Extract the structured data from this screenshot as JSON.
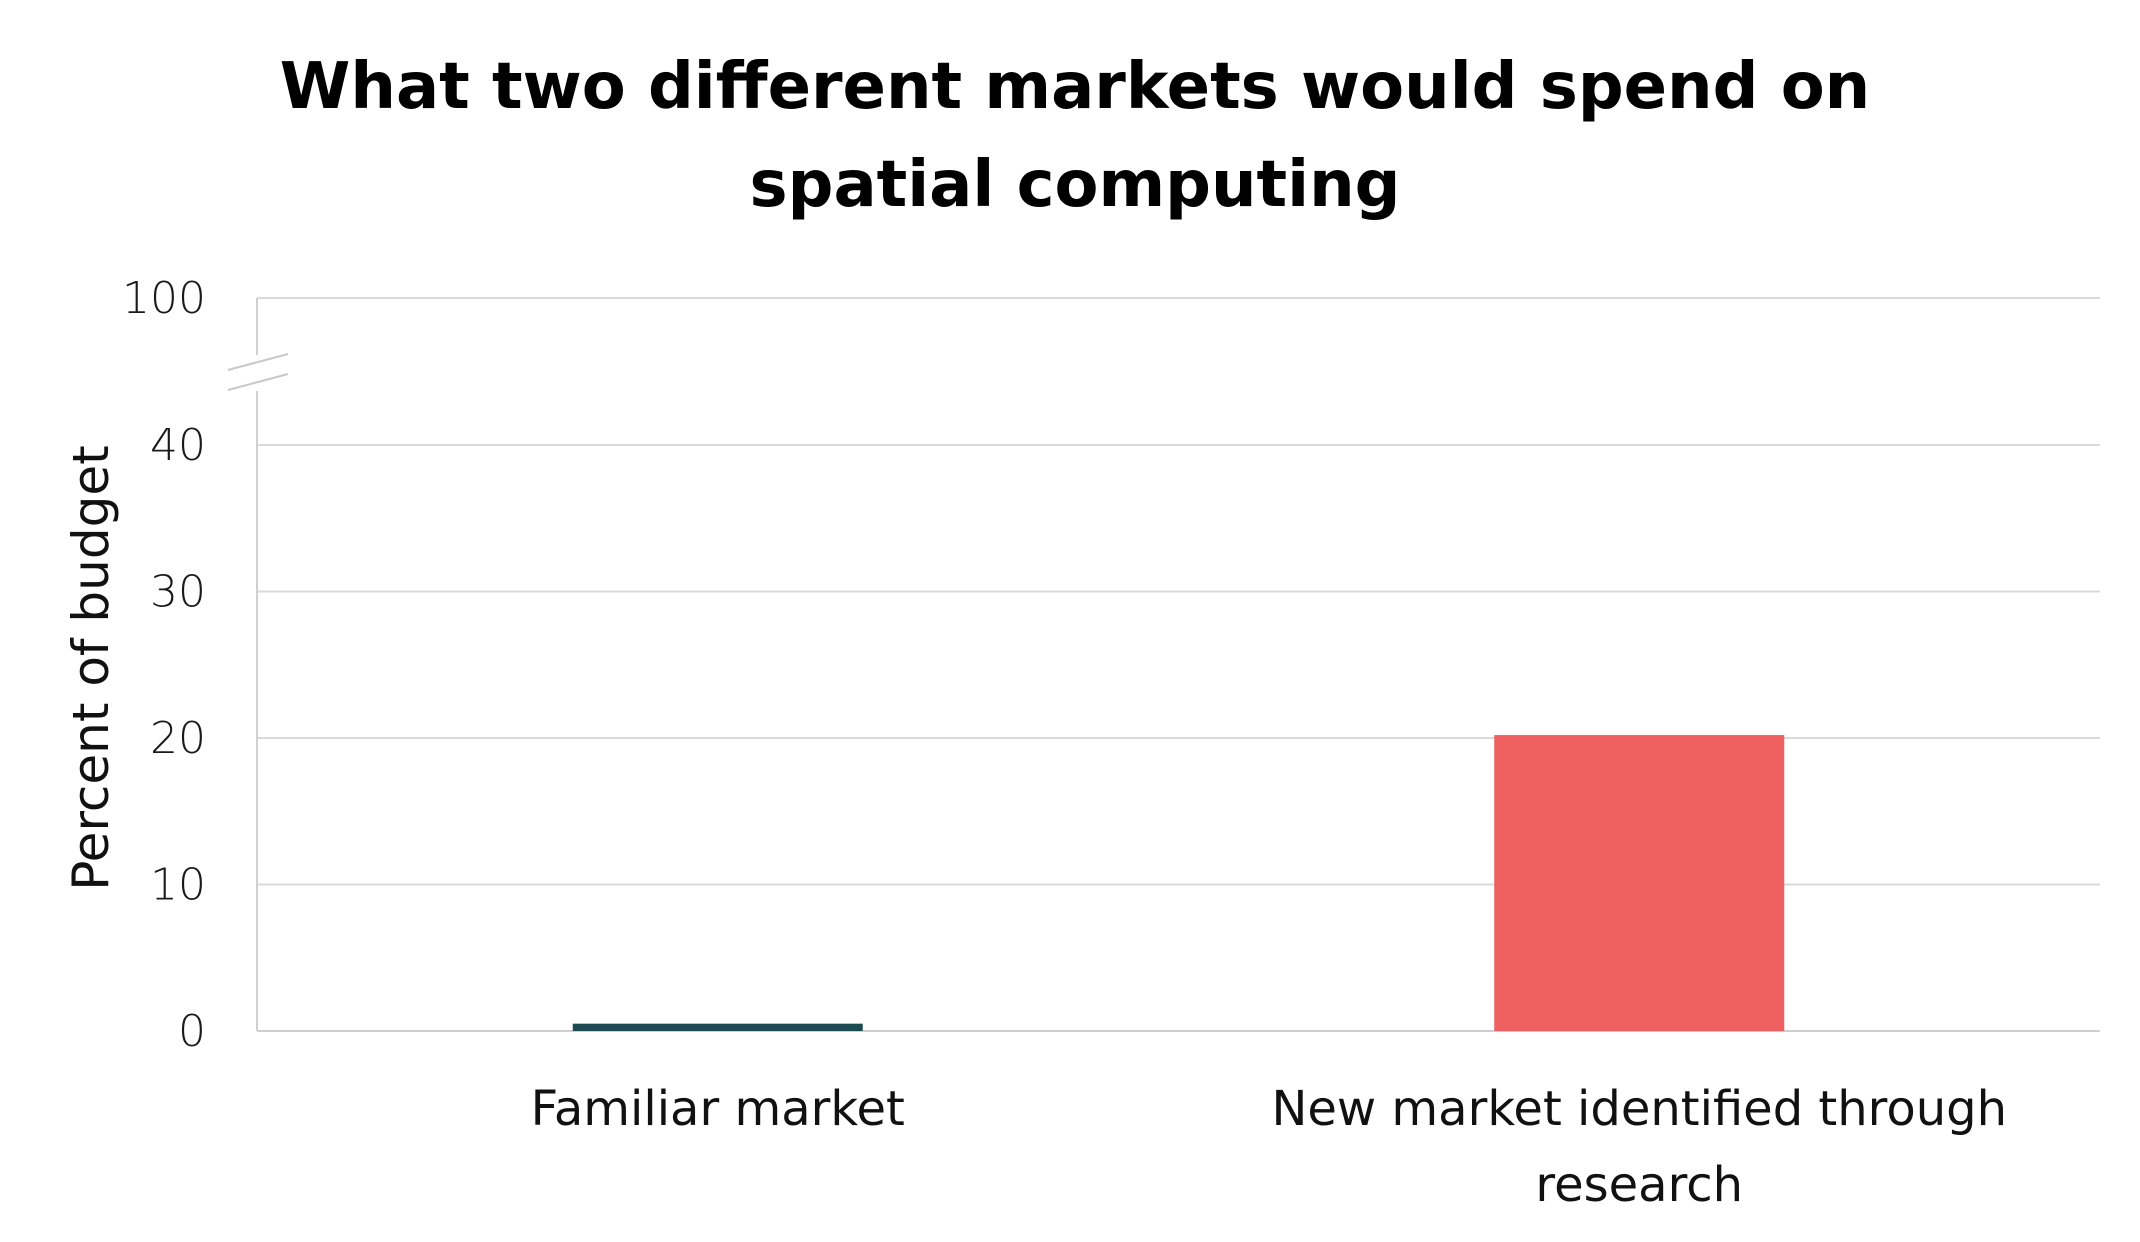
{
  "chart_data": {
    "type": "bar",
    "title": "What two different markets would spend on spatial computing",
    "xlabel": "",
    "ylabel": "Percent of budget",
    "categories": [
      "Familiar market",
      "New market identified through research"
    ],
    "category_lines": [
      [
        "Familiar market"
      ],
      [
        "New market identified through",
        "research"
      ]
    ],
    "values": [
      0.5,
      20.2
    ],
    "colors": [
      "#1a4b52",
      "#ee5f5f"
    ],
    "yticks": [
      0,
      10,
      20,
      30,
      40,
      100
    ],
    "ylim": [
      0,
      100
    ],
    "axis_break": {
      "from": 40,
      "to": 100
    },
    "grid": true,
    "legend": "none"
  }
}
